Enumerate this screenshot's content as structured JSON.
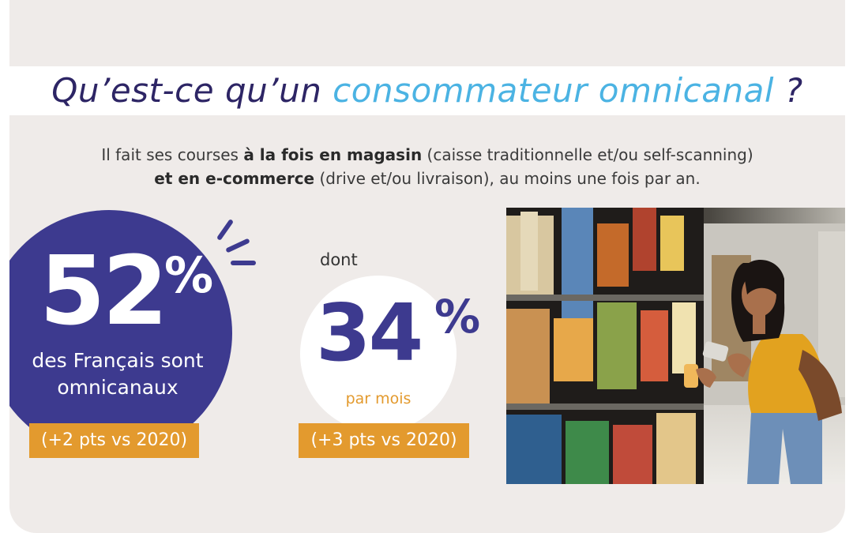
{
  "title": {
    "part1": "Qu’est-ce qu’un ",
    "accent": "consommateur omnicanal",
    "part2": " ?"
  },
  "intro": {
    "line1_a": "Il fait ses courses ",
    "line1_bold": "à la fois en magasin",
    "line1_b": " (caisse traditionnelle et/ou self-scanning)",
    "line2_bold": "et en e-commerce",
    "line2_b": " (drive et/ou livraison), au moins une fois par an."
  },
  "stat_main": {
    "number": "52",
    "percent": "%",
    "label_line1": "des Français sont",
    "label_line2": "omnicanaux",
    "badge": "(+2 pts vs 2020)"
  },
  "stat_secondary": {
    "prefix": "dont",
    "number": "34",
    "percent": "%",
    "label": "par mois",
    "badge": "(+3 pts vs 2020)"
  },
  "colors": {
    "navy": "#3d3a8f",
    "title_navy": "#2d2565",
    "accent_blue": "#4bb3e3",
    "orange": "#e39a2e",
    "background": "#efebe9"
  },
  "photo": {
    "subject": "woman-scanning-product-in-supermarket-aisle"
  }
}
